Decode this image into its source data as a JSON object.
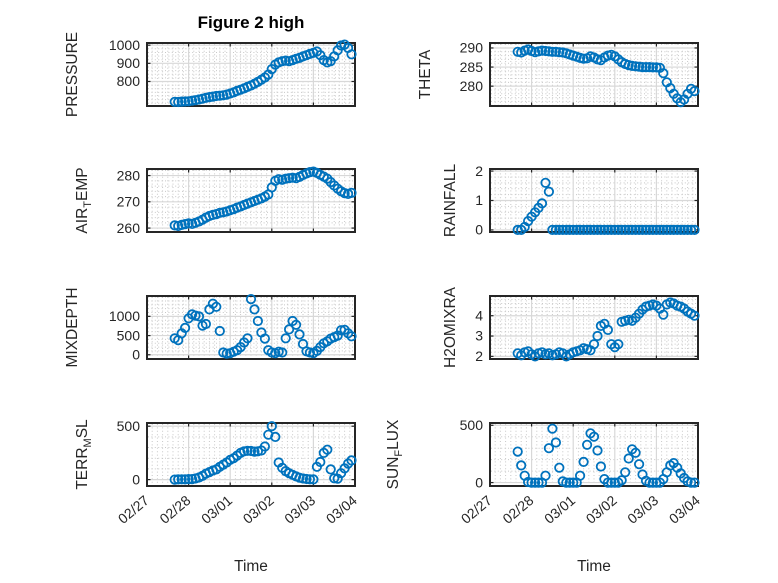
{
  "title": "Figure 2 high",
  "xlabel": "Time",
  "colors": {
    "marker": "#0072BD",
    "text": "#262626",
    "axis_box": "#262626",
    "major_grid": "#d8d8d8",
    "minor_grid": "#c8c8c8",
    "background": "#ffffff"
  },
  "chart_data": {
    "type": "scatter",
    "marker": "o",
    "linestyle": "none",
    "grid": true,
    "minor_grid": true,
    "x_axis": {
      "label": "Time",
      "tick_labels": [
        "02/27",
        "02/28",
        "03/01",
        "03/02",
        "03/03",
        "03/04"
      ],
      "range_days": [
        0,
        5
      ],
      "tick_label_rotation_deg": -40
    },
    "shared_x_days": [
      0.667,
      0.75,
      0.833,
      0.917,
      1.0,
      1.083,
      1.167,
      1.25,
      1.333,
      1.417,
      1.5,
      1.583,
      1.667,
      1.75,
      1.833,
      1.917,
      2.0,
      2.083,
      2.167,
      2.25,
      2.333,
      2.417,
      2.5,
      2.583,
      2.667,
      2.75,
      2.833,
      2.917,
      3.0,
      3.083,
      3.167,
      3.25,
      3.333,
      3.417,
      3.5,
      3.583,
      3.667,
      3.75,
      3.833,
      3.917,
      4.0,
      4.083,
      4.167,
      4.25,
      4.333,
      4.417,
      4.5,
      4.583,
      4.667,
      4.75,
      4.833,
      4.917
    ],
    "subplots": [
      {
        "name": "pressure",
        "ylabel_segments": [
          {
            "text": "PRESSURE",
            "sub": false
          }
        ],
        "yticks": [
          800,
          900,
          1000
        ],
        "ylim": [
          665,
          1012
        ],
        "yminor": 20,
        "ylabel_offset": -70,
        "y": [
          688,
          687,
          689,
          690,
          691,
          694,
          697,
          701,
          705,
          710,
          714,
          717,
          720,
          722,
          724,
          728,
          734,
          740,
          748,
          755,
          762,
          770,
          778,
          788,
          798,
          810,
          822,
          838,
          868,
          893,
          905,
          912,
          915,
          912,
          918,
          925,
          930,
          938,
          945,
          952,
          958,
          965,
          945,
          918,
          905,
          912,
          938,
          972,
          998,
          1003,
          985,
          950
        ]
      },
      {
        "name": "theta",
        "ylabel_segments": [
          {
            "text": "THETA",
            "sub": false
          }
        ],
        "yticks": [
          280,
          285,
          290
        ],
        "ylim": [
          274.8,
          291.3
        ],
        "yminor": 1,
        "ylabel_offset": -60,
        "y": [
          289.0,
          288.8,
          289.3,
          289.6,
          289.2,
          288.9,
          289.1,
          289.3,
          289.2,
          289.1,
          289.0,
          289.0,
          288.9,
          288.8,
          288.6,
          288.3,
          288.0,
          287.7,
          287.4,
          287.2,
          287.3,
          287.8,
          287.5,
          287.0,
          286.8,
          287.5,
          288.0,
          288.2,
          287.8,
          287.0,
          286.3,
          285.8,
          285.5,
          285.3,
          285.2,
          285.1,
          285.0,
          285.0,
          285.0,
          284.9,
          284.9,
          284.8,
          283.4,
          281.0,
          279.5,
          278.0,
          276.8,
          275.8,
          276.5,
          278.0,
          279.3,
          278.7
        ]
      },
      {
        "name": "air-temp",
        "ylabel_segments": [
          {
            "text": "AIR",
            "sub": false
          },
          {
            "text": "T",
            "sub": true
          },
          {
            "text": "EMP",
            "sub": false
          }
        ],
        "yticks": [
          260,
          270,
          280
        ],
        "ylim": [
          258.5,
          282.5
        ],
        "yminor": 2,
        "ylabel_offset": -60,
        "y": [
          261.0,
          260.8,
          261.2,
          261.5,
          261.8,
          261.6,
          262.0,
          262.5,
          263.2,
          264.0,
          264.6,
          265.0,
          265.3,
          265.8,
          266.0,
          266.3,
          266.8,
          267.2,
          267.8,
          268.2,
          268.8,
          269.3,
          269.8,
          270.3,
          270.8,
          271.3,
          272.0,
          272.8,
          275.5,
          278.0,
          278.6,
          278.4,
          278.8,
          279.0,
          279.2,
          279.0,
          279.5,
          280.2,
          280.8,
          281.3,
          281.5,
          281.0,
          280.3,
          279.6,
          278.8,
          277.5,
          276.2,
          275.0,
          274.0,
          273.3,
          273.0,
          273.4
        ]
      },
      {
        "name": "rainfall",
        "ylabel_segments": [
          {
            "text": "RAINFALL",
            "sub": false
          }
        ],
        "yticks": [
          0,
          1,
          2
        ],
        "ylim": [
          -0.07,
          2.07
        ],
        "yminor": 0.2,
        "ylabel_offset": -35,
        "y": [
          0,
          0,
          0.1,
          0.3,
          0.45,
          0.6,
          0.75,
          0.9,
          1.6,
          1.3,
          0,
          0,
          0,
          0,
          0,
          0,
          0,
          0,
          0,
          0,
          0,
          0,
          0,
          0,
          0,
          0,
          0,
          0,
          0,
          0,
          0,
          0,
          0,
          0,
          0,
          0,
          0,
          0,
          0,
          0,
          0,
          0,
          0,
          0,
          0,
          0,
          0,
          0,
          0,
          0,
          0,
          0
        ]
      },
      {
        "name": "mixdepth",
        "ylabel_segments": [
          {
            "text": "MIXDEPTH",
            "sub": false
          }
        ],
        "yticks": [
          0,
          500,
          1000
        ],
        "ylim": [
          -110,
          1530
        ],
        "yminor": 100,
        "ylabel_offset": -70,
        "y": [
          430,
          380,
          560,
          700,
          950,
          1050,
          1020,
          1000,
          760,
          800,
          1180,
          1330,
          1250,
          620,
          60,
          30,
          40,
          80,
          120,
          200,
          320,
          430,
          1450,
          1180,
          880,
          580,
          420,
          120,
          60,
          40,
          80,
          60,
          430,
          660,
          880,
          780,
          530,
          280,
          90,
          60,
          40,
          100,
          200,
          300,
          350,
          420,
          460,
          500,
          640,
          650,
          560,
          480
        ]
      },
      {
        "name": "h2omixra",
        "ylabel_segments": [
          {
            "text": "H2OMIXRA",
            "sub": false
          }
        ],
        "yticks": [
          2,
          3,
          4
        ],
        "ylim": [
          1.87,
          4.97
        ],
        "yminor": 0.2,
        "ylabel_offset": -35,
        "y": [
          2.15,
          2.05,
          2.2,
          2.25,
          2.1,
          2.0,
          2.15,
          2.2,
          2.1,
          2.15,
          2.05,
          2.1,
          2.2,
          2.15,
          2.0,
          2.1,
          2.2,
          2.25,
          2.3,
          2.4,
          2.35,
          2.3,
          2.6,
          3.0,
          3.5,
          3.6,
          3.3,
          2.6,
          2.45,
          2.6,
          3.7,
          3.75,
          3.8,
          3.75,
          3.9,
          4.1,
          4.3,
          4.45,
          4.5,
          4.55,
          4.5,
          4.35,
          4.05,
          4.55,
          4.65,
          4.6,
          4.5,
          4.45,
          4.35,
          4.2,
          4.1,
          4.0
        ]
      },
      {
        "name": "terr-msl",
        "ylabel_segments": [
          {
            "text": "TERR",
            "sub": false
          },
          {
            "text": "M",
            "sub": true
          },
          {
            "text": "SL",
            "sub": false
          }
        ],
        "yticks": [
          0,
          500
        ],
        "ylim": [
          -60,
          530
        ],
        "yminor": 100,
        "ylabel_offset": -60,
        "y": [
          0,
          2,
          3,
          2,
          5,
          5,
          10,
          20,
          35,
          55,
          70,
          85,
          95,
          120,
          140,
          160,
          185,
          200,
          225,
          250,
          265,
          270,
          268,
          262,
          265,
          272,
          310,
          420,
          500,
          400,
          160,
          110,
          80,
          60,
          45,
          30,
          18,
          10,
          6,
          3,
          2,
          120,
          165,
          250,
          280,
          95,
          12,
          8,
          60,
          105,
          150,
          180
        ]
      },
      {
        "name": "sun-flux",
        "ylabel_segments": [
          {
            "text": "SUN",
            "sub": false
          },
          {
            "text": "F",
            "sub": true
          },
          {
            "text": "LUX",
            "sub": false
          }
        ],
        "yticks": [
          0,
          500
        ],
        "ylim": [
          -30,
          520
        ],
        "yminor": 100,
        "ylabel_offset": -92,
        "y": [
          270,
          150,
          60,
          5,
          0,
          0,
          0,
          0,
          60,
          300,
          470,
          350,
          130,
          10,
          0,
          0,
          0,
          0,
          60,
          180,
          330,
          430,
          400,
          280,
          140,
          30,
          0,
          0,
          0,
          0,
          20,
          90,
          210,
          290,
          260,
          160,
          70,
          15,
          0,
          0,
          0,
          0,
          30,
          90,
          150,
          170,
          130,
          80,
          40,
          10,
          0,
          0
        ]
      }
    ]
  }
}
